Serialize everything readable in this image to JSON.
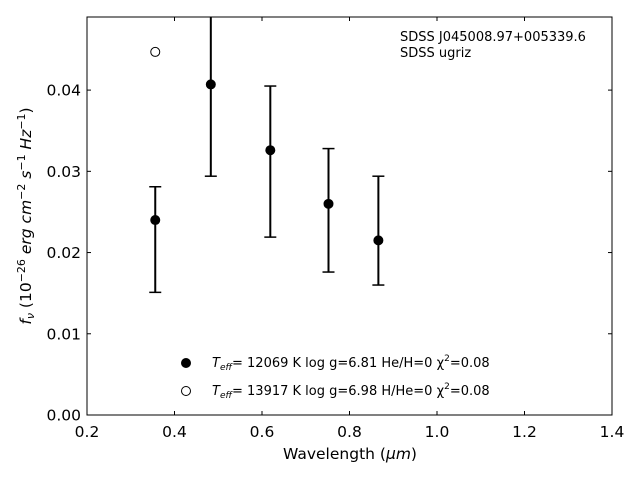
{
  "chart_data": {
    "type": "scatter",
    "title": "",
    "xlabel": "Wavelength",
    "xlabel_unit": "μm",
    "ylabel_main": "f",
    "ylabel_sub": "ν",
    "ylabel_unit_open": "(10",
    "ylabel_exp1": "−26",
    "ylabel_erg": "erg cm",
    "ylabel_exp2": "−2",
    "ylabel_s": "s",
    "ylabel_exp3": "−1",
    "ylabel_hz": "Hz",
    "ylabel_exp4": "−1",
    "ylabel_close": ")",
    "xlim": [
      0.2,
      1.4
    ],
    "ylim": [
      0.0,
      0.049
    ],
    "xticks": [
      "0.2",
      "0.4",
      "0.6",
      "0.8",
      "1.0",
      "1.2",
      "1.4"
    ],
    "yticks": [
      "0.00",
      "0.01",
      "0.02",
      "0.03",
      "0.04"
    ],
    "annotation_line1": "SDSS J045008.97+005339.6",
    "annotation_line2": "SDSS ugriz",
    "series": [
      {
        "marker": "filled-circle",
        "color": "#000000",
        "points": [
          {
            "x": 0.356,
            "y": 0.024,
            "yerr_low": 0.0151,
            "yerr_high": 0.0281
          },
          {
            "x": 0.483,
            "y": 0.0407,
            "yerr_low": 0.0294,
            "yerr_high": 0.049
          },
          {
            "x": 0.619,
            "y": 0.0326,
            "yerr_low": 0.0219,
            "yerr_high": 0.0405
          },
          {
            "x": 0.752,
            "y": 0.026,
            "yerr_low": 0.0176,
            "yerr_high": 0.0328
          },
          {
            "x": 0.866,
            "y": 0.0215,
            "yerr_low": 0.016,
            "yerr_high": 0.0294
          }
        ]
      },
      {
        "marker": "open-circle",
        "color": "#000000",
        "points": [
          {
            "x": 0.356,
            "y": 0.0447
          }
        ]
      }
    ],
    "legend": [
      {
        "marker": "filled-circle",
        "t": "T",
        "sub": "eff",
        "text1": "= 12069 K  log g=6.81  He/H=0  χ",
        "sup": "2",
        "text2": "=0.08"
      },
      {
        "marker": "open-circle",
        "t": "T",
        "sub": "eff",
        "text1": "= 13917 K  log g=6.98  H/He=0  χ",
        "sup": "2",
        "text2": "=0.08"
      }
    ],
    "legend_placement": "lower-center",
    "grid": false
  }
}
